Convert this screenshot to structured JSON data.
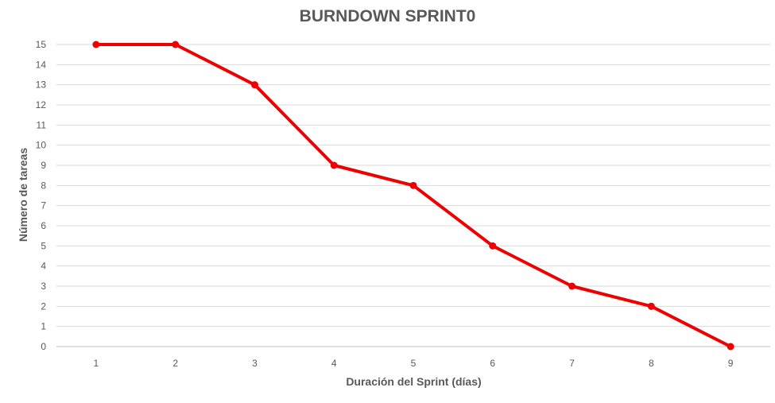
{
  "chart_data": {
    "type": "line",
    "title": "BURNDOWN SPRINT0",
    "xlabel": "Duración del Sprint (días)",
    "ylabel": "Número de tareas",
    "categories": [
      "1",
      "2",
      "3",
      "4",
      "5",
      "6",
      "7",
      "8",
      "9"
    ],
    "series": [
      {
        "values": [
          15,
          15,
          13,
          9,
          8,
          5,
          3,
          2,
          0
        ],
        "color": "#ee0000"
      }
    ],
    "ylim": [
      0,
      15
    ],
    "yticks": [
      0,
      1,
      2,
      3,
      4,
      5,
      6,
      7,
      8,
      9,
      10,
      11,
      12,
      13,
      14,
      15
    ],
    "grid": true,
    "legend": "none"
  }
}
